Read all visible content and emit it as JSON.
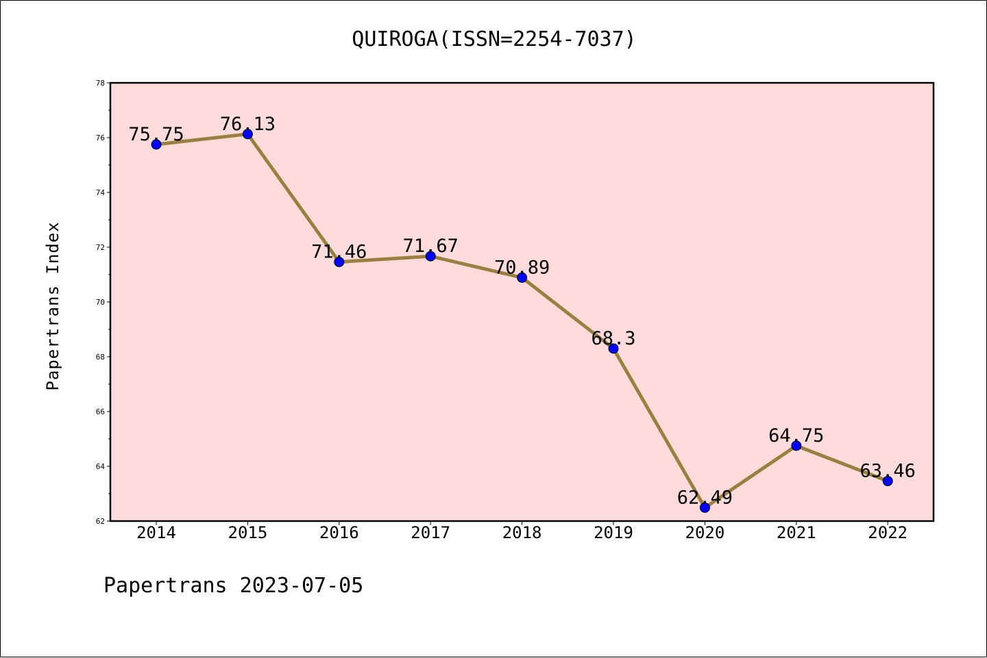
{
  "chart_data": {
    "type": "line",
    "title": "QUIROGA(ISSN=2254-7037)",
    "xlabel": "",
    "ylabel": "Papertrans Index",
    "x": [
      "2014",
      "2015",
      "2016",
      "2017",
      "2018",
      "2019",
      "2020",
      "2021",
      "2022"
    ],
    "series": [
      {
        "values": [
          75.75,
          76.13,
          71.46,
          71.67,
          70.89,
          68.3,
          62.49,
          64.75,
          63.46
        ],
        "labels": [
          "75.75",
          "76.13",
          "71.46",
          "71.67",
          "70.89",
          "68.3",
          "62.49",
          "64.75",
          "63.46"
        ]
      }
    ],
    "ylim": [
      62,
      78
    ],
    "yticks": [
      "62",
      "64",
      "66",
      "68",
      "70",
      "72",
      "74",
      "76",
      "78"
    ],
    "grid": false,
    "legend": "none",
    "colors": {
      "plot_background": "#ffdcdb",
      "line": "#9a8040",
      "marker": "#0000ff"
    }
  },
  "footer": "Papertrans 2023-07-05"
}
